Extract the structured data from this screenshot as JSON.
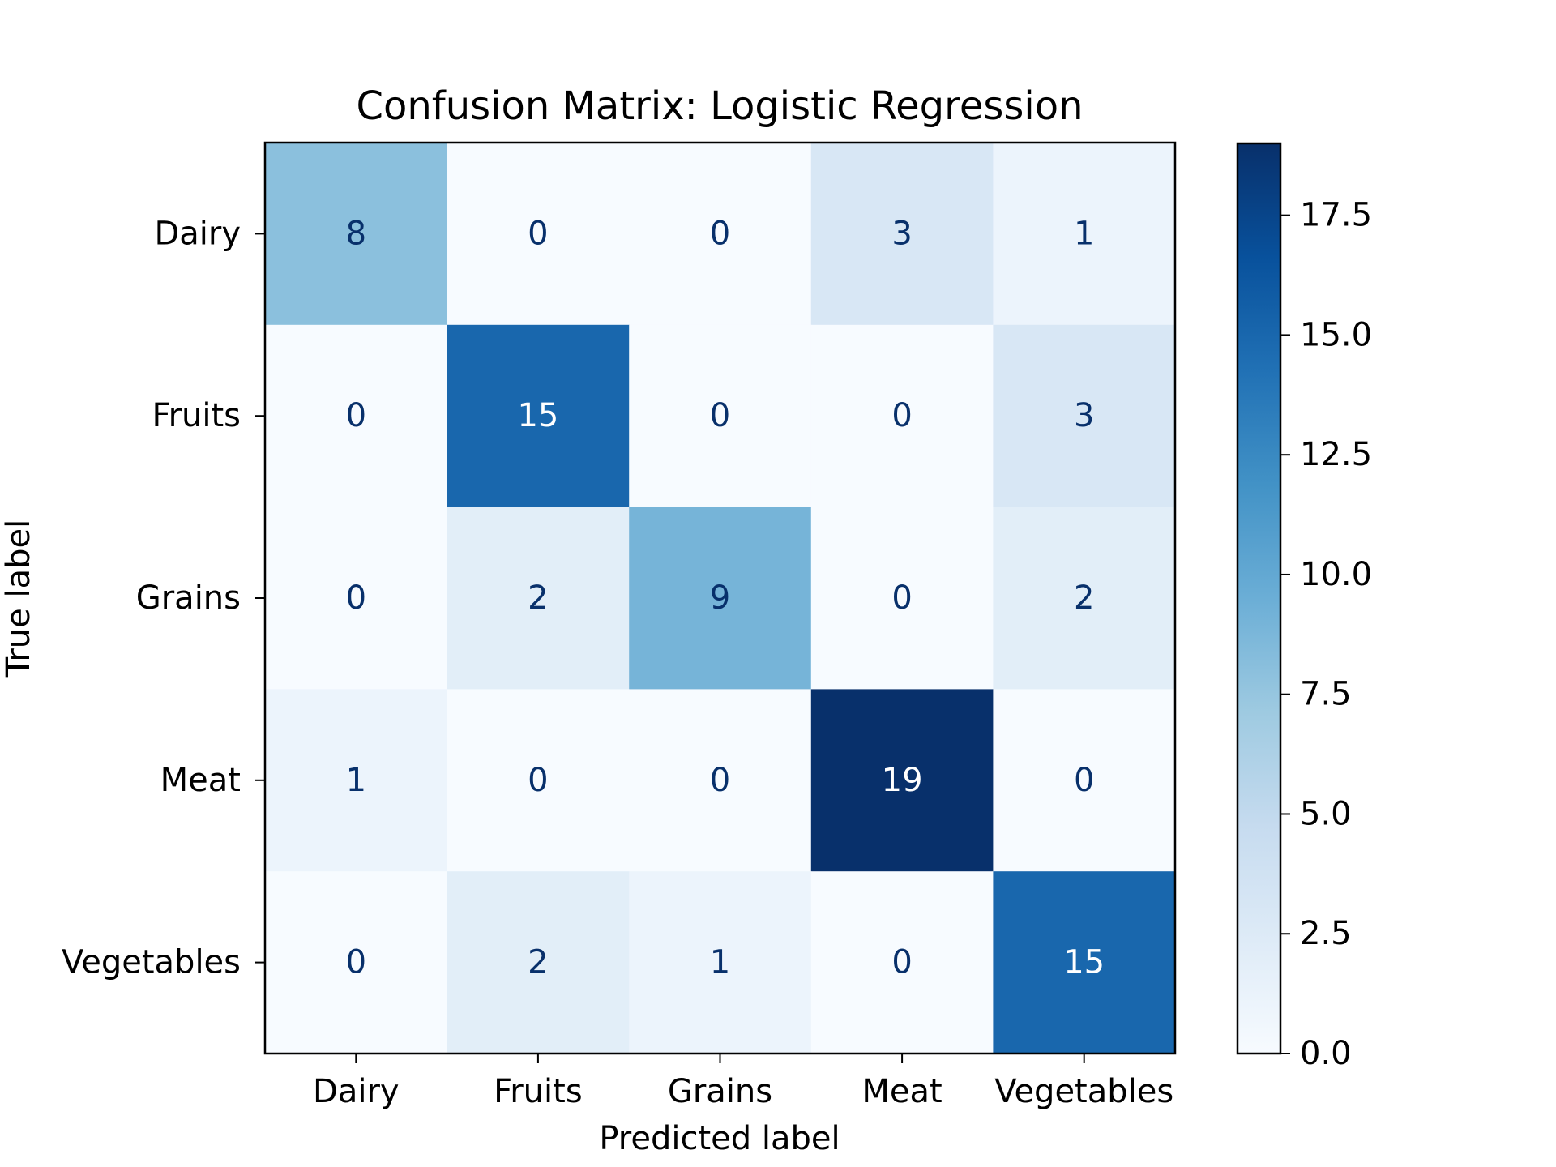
{
  "chart_data": {
    "type": "heatmap",
    "title": "Confusion Matrix: Logistic Regression",
    "xlabel": "Predicted label",
    "ylabel": "True label",
    "x_categories": [
      "Dairy",
      "Fruits",
      "Grains",
      "Meat",
      "Vegetables"
    ],
    "y_categories": [
      "Dairy",
      "Fruits",
      "Grains",
      "Meat",
      "Vegetables"
    ],
    "values": [
      [
        8,
        0,
        0,
        3,
        1
      ],
      [
        0,
        15,
        0,
        0,
        3
      ],
      [
        0,
        2,
        9,
        0,
        2
      ],
      [
        1,
        0,
        0,
        19,
        0
      ],
      [
        0,
        2,
        1,
        0,
        15
      ]
    ],
    "colormap": "Blues",
    "colorbar": {
      "range": [
        0,
        19
      ],
      "tick_values": [
        0,
        2.5,
        5,
        7.5,
        10,
        12.5,
        15,
        17.5
      ],
      "tick_labels": [
        "0.0",
        "2.5",
        "5.0",
        "7.5",
        "10.0",
        "12.5",
        "15.0",
        "17.5"
      ]
    },
    "cell_text_colors": {
      "light": "#ffffff",
      "dark": "#08306b"
    },
    "grid": false
  }
}
